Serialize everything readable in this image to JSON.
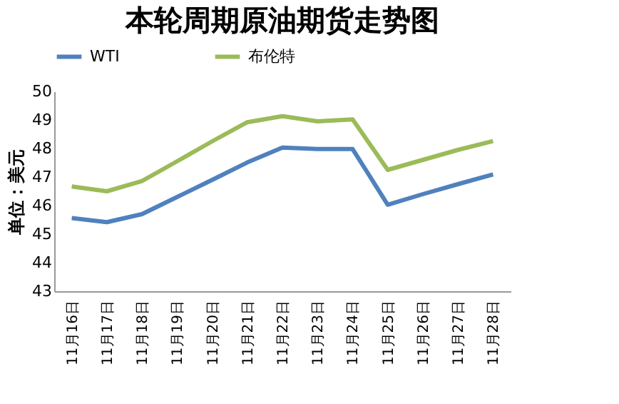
{
  "chart_data": {
    "type": "line",
    "title": "本轮周期原油期货走势图",
    "ylabel": "单位：美元",
    "categories": [
      "11月16日",
      "11月17日",
      "11月18日",
      "11月19日",
      "11月20日",
      "11月21日",
      "11月22日",
      "11月23日",
      "11月24日",
      "11月25日",
      "11月26日",
      "11月27日",
      "11月28日"
    ],
    "series": [
      {
        "name": "WTI",
        "color": "#4f81bd",
        "values": [
          45.56,
          45.42,
          45.7,
          46.3,
          46.9,
          47.51,
          48.03,
          47.98,
          47.98,
          46.03,
          46.4,
          46.75,
          47.09
        ]
      },
      {
        "name": "布伦特",
        "color": "#9bbb59",
        "values": [
          46.67,
          46.5,
          46.86,
          47.55,
          48.25,
          48.92,
          49.13,
          48.95,
          49.02,
          47.25,
          47.6,
          47.95,
          48.26
        ]
      }
    ],
    "ylim": [
      43,
      50
    ],
    "yticks": [
      43,
      44,
      45,
      46,
      47,
      48,
      49,
      50
    ],
    "grid": false,
    "legend": "top",
    "marker": "none",
    "line_style": "solid"
  }
}
